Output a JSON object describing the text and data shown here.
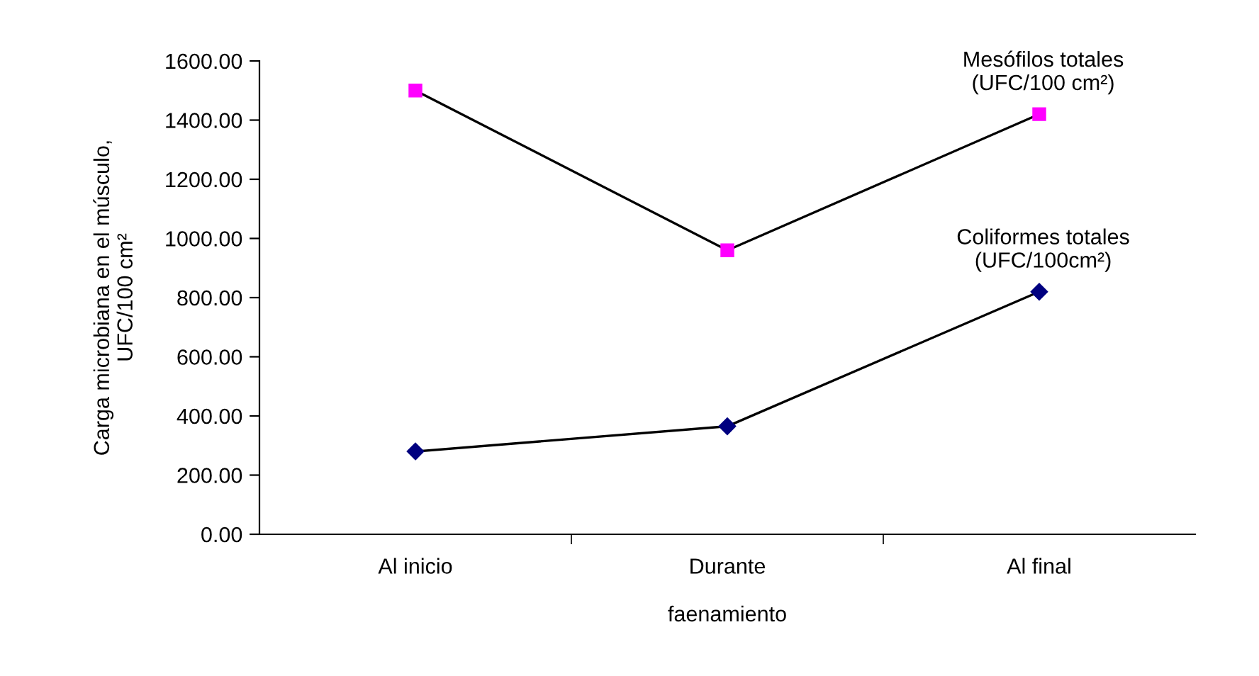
{
  "chart_data": {
    "type": "line",
    "xlabel": "faenamiento",
    "ylabel": "Carga microbiana en el músculo,\nUFC/100 cm²",
    "categories": [
      "Al inicio",
      "Durante",
      "Al final"
    ],
    "series": [
      {
        "name": "Mesófilos totales\n(UFC/100 cm²)",
        "color": "#ff00ff",
        "marker": "square",
        "values": [
          1500,
          960,
          1420
        ]
      },
      {
        "name": "Coliformes totales\n(UFC/100cm²)",
        "color": "#000080",
        "marker": "diamond",
        "values": [
          280,
          365,
          820
        ]
      }
    ],
    "ylim": [
      0,
      1600
    ],
    "yticks": [
      {
        "value": 0,
        "label": "0.00"
      },
      {
        "value": 200,
        "label": "200.00"
      },
      {
        "value": 400,
        "label": "400.00"
      },
      {
        "value": 600,
        "label": "600.00"
      },
      {
        "value": 800,
        "label": "800.00"
      },
      {
        "value": 1000,
        "label": "1000.00"
      },
      {
        "value": 1200,
        "label": "1200.00"
      },
      {
        "value": 1400,
        "label": "1400.00"
      },
      {
        "value": 1600,
        "label": "1600.00"
      }
    ],
    "grid": false,
    "legend": false
  }
}
